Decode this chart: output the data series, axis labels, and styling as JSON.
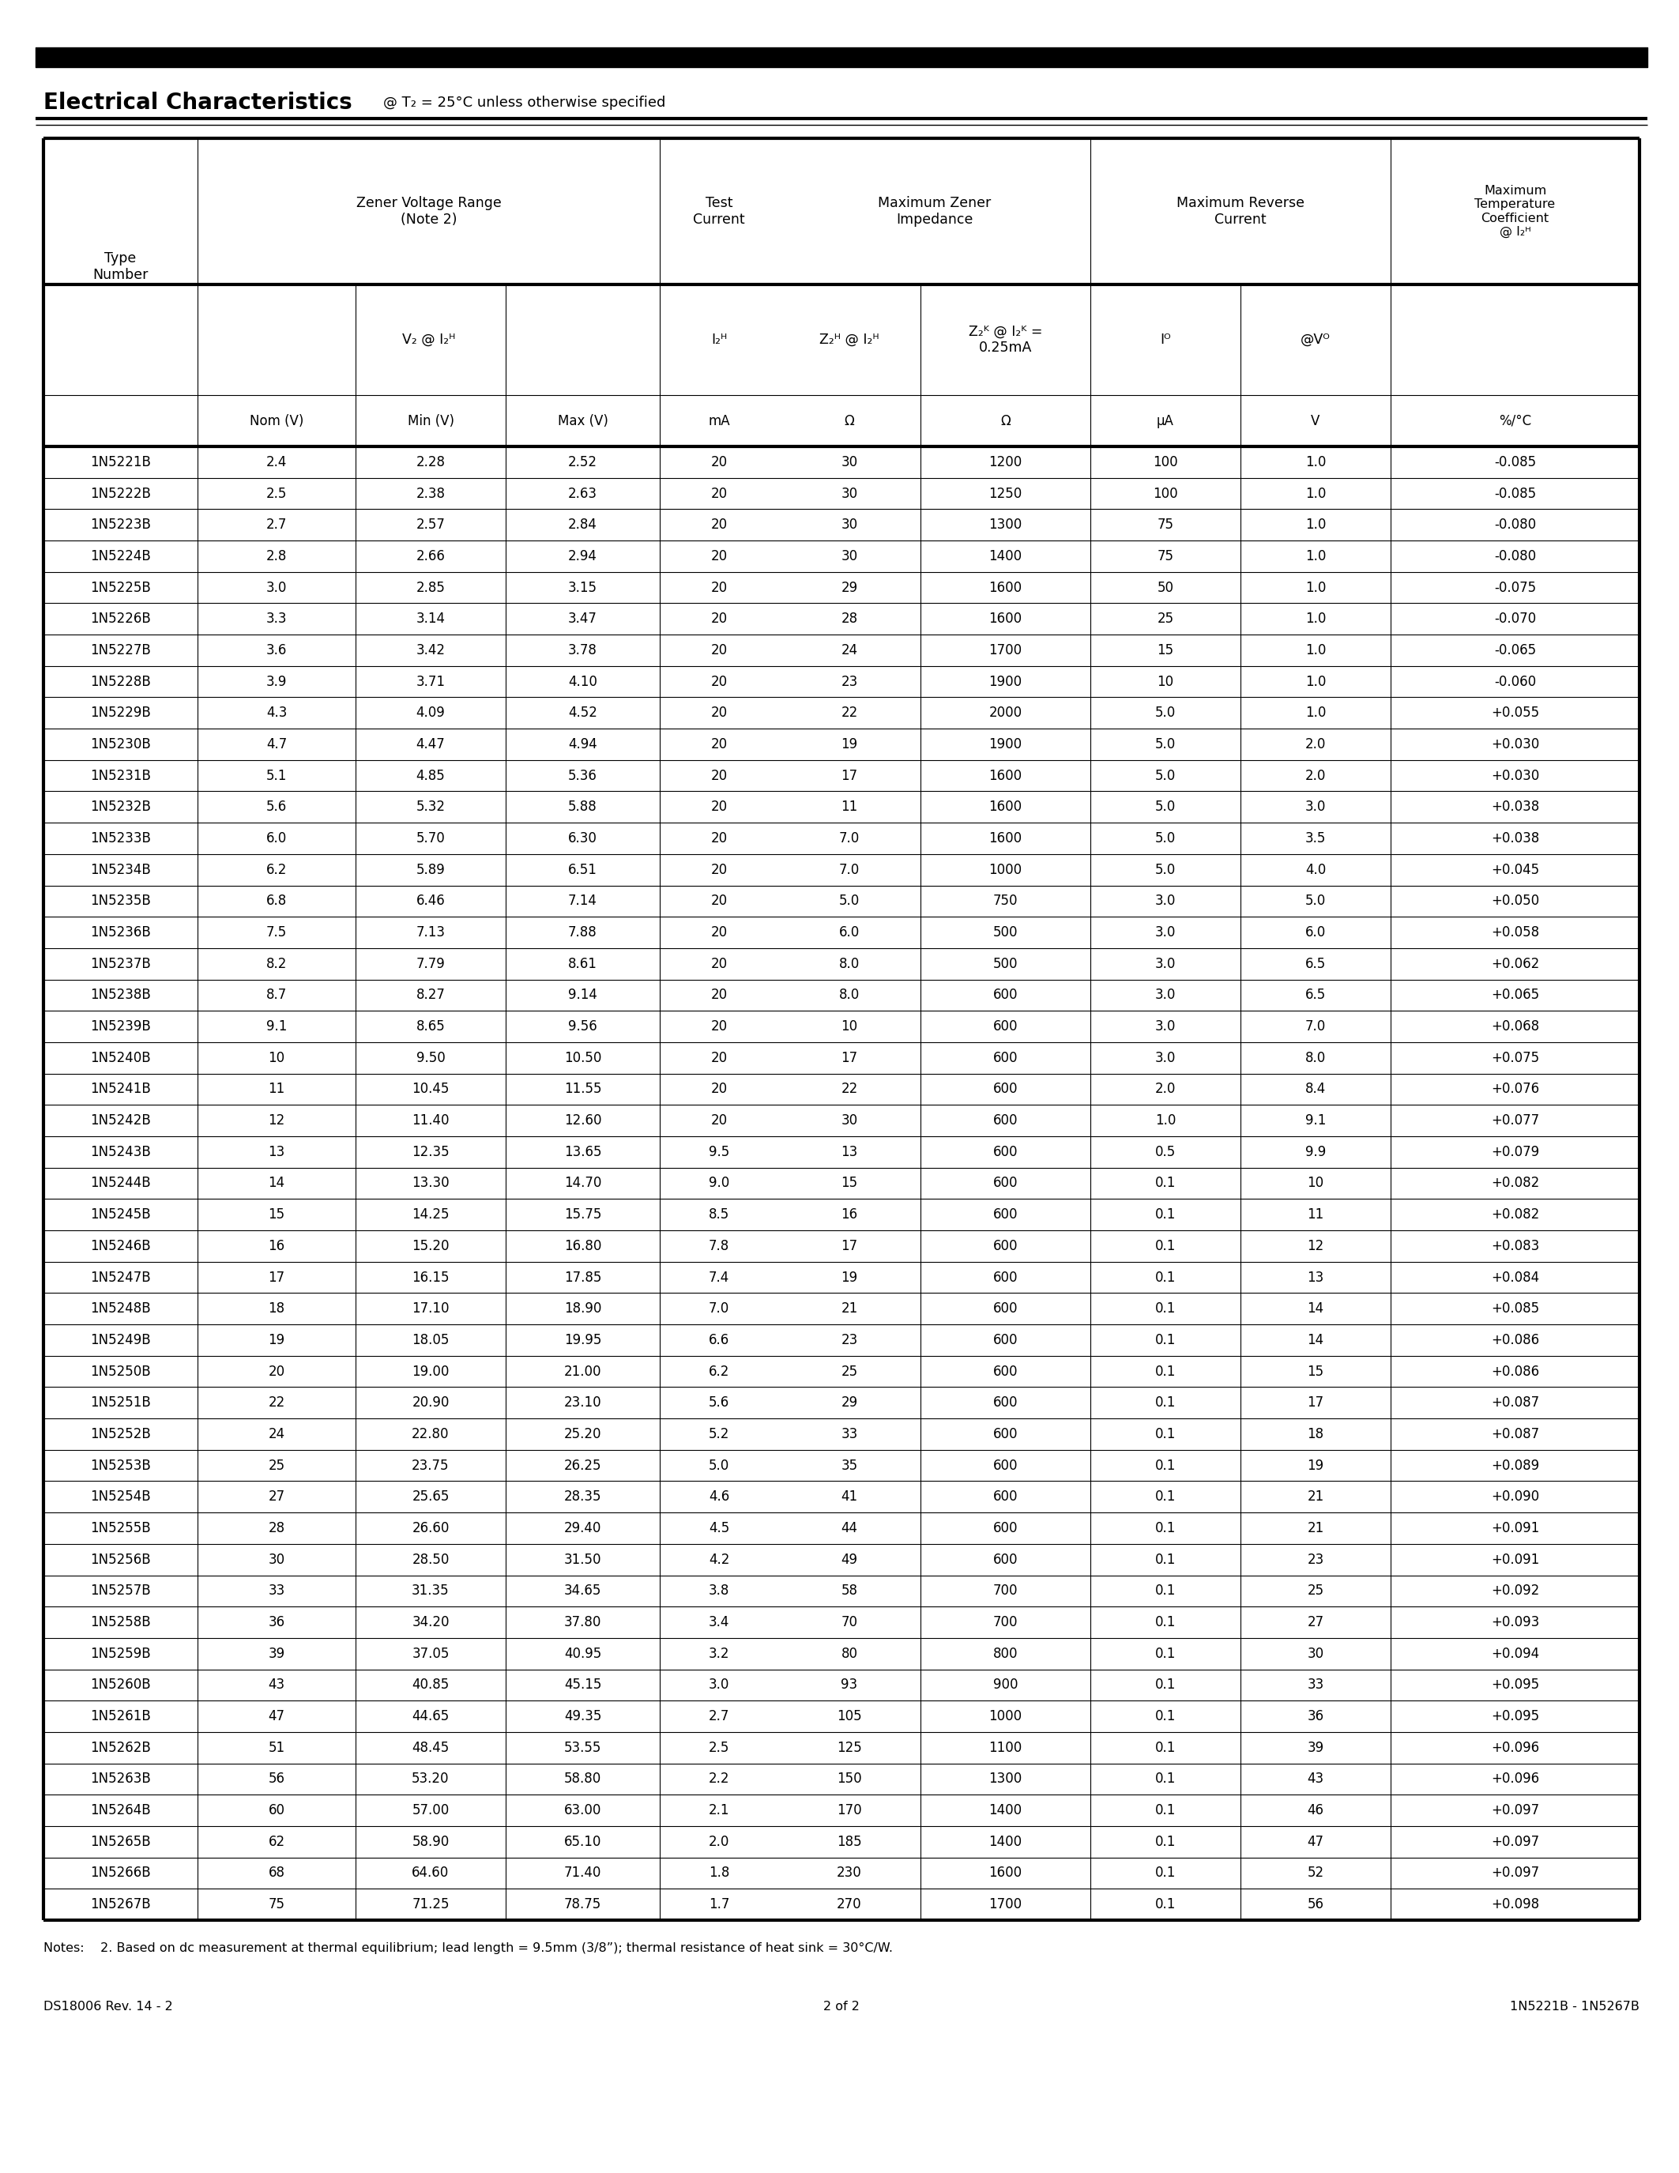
{
  "title": "Electrical Characteristics",
  "title_suffix": "@ T₂ = 25°C unless otherwise specified",
  "footer_left": "DS18006 Rev. 14 - 2",
  "footer_center": "2 of 2",
  "footer_right": "1N5221B - 1N5267B",
  "notes": "Notes:    2. Based on dc measurement at thermal equilibrium; lead length = 9.5mm (3/8”); thermal resistance of heat sink = 30°C/W.",
  "rows": [
    [
      "1N5221B",
      "2.4",
      "2.28",
      "2.52",
      "20",
      "30",
      "1200",
      "100",
      "1.0",
      "-0.085"
    ],
    [
      "1N5222B",
      "2.5",
      "2.38",
      "2.63",
      "20",
      "30",
      "1250",
      "100",
      "1.0",
      "-0.085"
    ],
    [
      "1N5223B",
      "2.7",
      "2.57",
      "2.84",
      "20",
      "30",
      "1300",
      "75",
      "1.0",
      "-0.080"
    ],
    [
      "1N5224B",
      "2.8",
      "2.66",
      "2.94",
      "20",
      "30",
      "1400",
      "75",
      "1.0",
      "-0.080"
    ],
    [
      "1N5225B",
      "3.0",
      "2.85",
      "3.15",
      "20",
      "29",
      "1600",
      "50",
      "1.0",
      "-0.075"
    ],
    [
      "1N5226B",
      "3.3",
      "3.14",
      "3.47",
      "20",
      "28",
      "1600",
      "25",
      "1.0",
      "-0.070"
    ],
    [
      "1N5227B",
      "3.6",
      "3.42",
      "3.78",
      "20",
      "24",
      "1700",
      "15",
      "1.0",
      "-0.065"
    ],
    [
      "1N5228B",
      "3.9",
      "3.71",
      "4.10",
      "20",
      "23",
      "1900",
      "10",
      "1.0",
      "-0.060"
    ],
    [
      "1N5229B",
      "4.3",
      "4.09",
      "4.52",
      "20",
      "22",
      "2000",
      "5.0",
      "1.0",
      "+0.055"
    ],
    [
      "1N5230B",
      "4.7",
      "4.47",
      "4.94",
      "20",
      "19",
      "1900",
      "5.0",
      "2.0",
      "+0.030"
    ],
    [
      "1N5231B",
      "5.1",
      "4.85",
      "5.36",
      "20",
      "17",
      "1600",
      "5.0",
      "2.0",
      "+0.030"
    ],
    [
      "1N5232B",
      "5.6",
      "5.32",
      "5.88",
      "20",
      "11",
      "1600",
      "5.0",
      "3.0",
      "+0.038"
    ],
    [
      "1N5233B",
      "6.0",
      "5.70",
      "6.30",
      "20",
      "7.0",
      "1600",
      "5.0",
      "3.5",
      "+0.038"
    ],
    [
      "1N5234B",
      "6.2",
      "5.89",
      "6.51",
      "20",
      "7.0",
      "1000",
      "5.0",
      "4.0",
      "+0.045"
    ],
    [
      "1N5235B",
      "6.8",
      "6.46",
      "7.14",
      "20",
      "5.0",
      "750",
      "3.0",
      "5.0",
      "+0.050"
    ],
    [
      "1N5236B",
      "7.5",
      "7.13",
      "7.88",
      "20",
      "6.0",
      "500",
      "3.0",
      "6.0",
      "+0.058"
    ],
    [
      "1N5237B",
      "8.2",
      "7.79",
      "8.61",
      "20",
      "8.0",
      "500",
      "3.0",
      "6.5",
      "+0.062"
    ],
    [
      "1N5238B",
      "8.7",
      "8.27",
      "9.14",
      "20",
      "8.0",
      "600",
      "3.0",
      "6.5",
      "+0.065"
    ],
    [
      "1N5239B",
      "9.1",
      "8.65",
      "9.56",
      "20",
      "10",
      "600",
      "3.0",
      "7.0",
      "+0.068"
    ],
    [
      "1N5240B",
      "10",
      "9.50",
      "10.50",
      "20",
      "17",
      "600",
      "3.0",
      "8.0",
      "+0.075"
    ],
    [
      "1N5241B",
      "11",
      "10.45",
      "11.55",
      "20",
      "22",
      "600",
      "2.0",
      "8.4",
      "+0.076"
    ],
    [
      "1N5242B",
      "12",
      "11.40",
      "12.60",
      "20",
      "30",
      "600",
      "1.0",
      "9.1",
      "+0.077"
    ],
    [
      "1N5243B",
      "13",
      "12.35",
      "13.65",
      "9.5",
      "13",
      "600",
      "0.5",
      "9.9",
      "+0.079"
    ],
    [
      "1N5244B",
      "14",
      "13.30",
      "14.70",
      "9.0",
      "15",
      "600",
      "0.1",
      "10",
      "+0.082"
    ],
    [
      "1N5245B",
      "15",
      "14.25",
      "15.75",
      "8.5",
      "16",
      "600",
      "0.1",
      "11",
      "+0.082"
    ],
    [
      "1N5246B",
      "16",
      "15.20",
      "16.80",
      "7.8",
      "17",
      "600",
      "0.1",
      "12",
      "+0.083"
    ],
    [
      "1N5247B",
      "17",
      "16.15",
      "17.85",
      "7.4",
      "19",
      "600",
      "0.1",
      "13",
      "+0.084"
    ],
    [
      "1N5248B",
      "18",
      "17.10",
      "18.90",
      "7.0",
      "21",
      "600",
      "0.1",
      "14",
      "+0.085"
    ],
    [
      "1N5249B",
      "19",
      "18.05",
      "19.95",
      "6.6",
      "23",
      "600",
      "0.1",
      "14",
      "+0.086"
    ],
    [
      "1N5250B",
      "20",
      "19.00",
      "21.00",
      "6.2",
      "25",
      "600",
      "0.1",
      "15",
      "+0.086"
    ],
    [
      "1N5251B",
      "22",
      "20.90",
      "23.10",
      "5.6",
      "29",
      "600",
      "0.1",
      "17",
      "+0.087"
    ],
    [
      "1N5252B",
      "24",
      "22.80",
      "25.20",
      "5.2",
      "33",
      "600",
      "0.1",
      "18",
      "+0.087"
    ],
    [
      "1N5253B",
      "25",
      "23.75",
      "26.25",
      "5.0",
      "35",
      "600",
      "0.1",
      "19",
      "+0.089"
    ],
    [
      "1N5254B",
      "27",
      "25.65",
      "28.35",
      "4.6",
      "41",
      "600",
      "0.1",
      "21",
      "+0.090"
    ],
    [
      "1N5255B",
      "28",
      "26.60",
      "29.40",
      "4.5",
      "44",
      "600",
      "0.1",
      "21",
      "+0.091"
    ],
    [
      "1N5256B",
      "30",
      "28.50",
      "31.50",
      "4.2",
      "49",
      "600",
      "0.1",
      "23",
      "+0.091"
    ],
    [
      "1N5257B",
      "33",
      "31.35",
      "34.65",
      "3.8",
      "58",
      "700",
      "0.1",
      "25",
      "+0.092"
    ],
    [
      "1N5258B",
      "36",
      "34.20",
      "37.80",
      "3.4",
      "70",
      "700",
      "0.1",
      "27",
      "+0.093"
    ],
    [
      "1N5259B",
      "39",
      "37.05",
      "40.95",
      "3.2",
      "80",
      "800",
      "0.1",
      "30",
      "+0.094"
    ],
    [
      "1N5260B",
      "43",
      "40.85",
      "45.15",
      "3.0",
      "93",
      "900",
      "0.1",
      "33",
      "+0.095"
    ],
    [
      "1N5261B",
      "47",
      "44.65",
      "49.35",
      "2.7",
      "105",
      "1000",
      "0.1",
      "36",
      "+0.095"
    ],
    [
      "1N5262B",
      "51",
      "48.45",
      "53.55",
      "2.5",
      "125",
      "1100",
      "0.1",
      "39",
      "+0.096"
    ],
    [
      "1N5263B",
      "56",
      "53.20",
      "58.80",
      "2.2",
      "150",
      "1300",
      "0.1",
      "43",
      "+0.096"
    ],
    [
      "1N5264B",
      "60",
      "57.00",
      "63.00",
      "2.1",
      "170",
      "1400",
      "0.1",
      "46",
      "+0.097"
    ],
    [
      "1N5265B",
      "62",
      "58.90",
      "65.10",
      "2.0",
      "185",
      "1400",
      "0.1",
      "47",
      "+0.097"
    ],
    [
      "1N5266B",
      "68",
      "64.60",
      "71.40",
      "1.8",
      "230",
      "1600",
      "0.1",
      "52",
      "+0.097"
    ],
    [
      "1N5267B",
      "75",
      "71.25",
      "78.75",
      "1.7",
      "270",
      "1700",
      "0.1",
      "56",
      "+0.098"
    ]
  ]
}
